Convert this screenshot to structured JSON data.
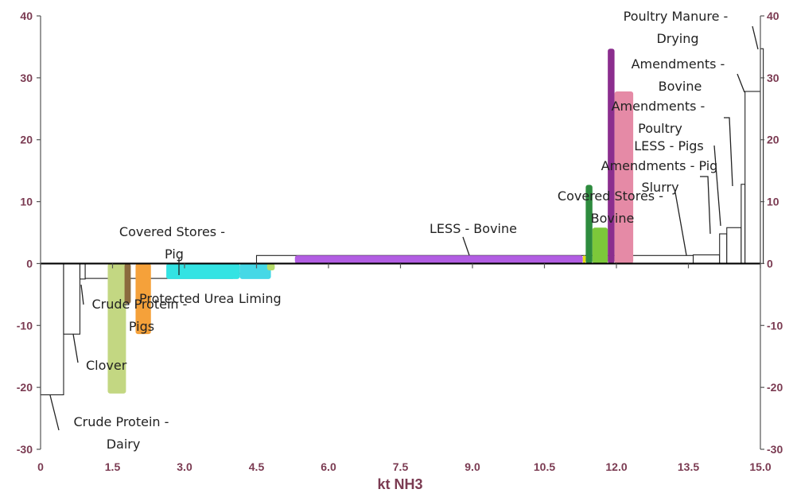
{
  "chart_data": {
    "type": "bar",
    "subtype": "marginal-abatement-cost-curve",
    "xlabel": "kt NH3",
    "ylabel": "",
    "xlim": [
      0,
      15.0
    ],
    "ylim": [
      -30,
      40
    ],
    "x_ticks": [
      "0",
      "1.5",
      "3.0",
      "4.5",
      "6.0",
      "7.5",
      "9.0",
      "10.5",
      "12.0",
      "13.5",
      "15.0"
    ],
    "y_ticks": [
      "-30",
      "-20",
      "-10",
      "0",
      "10",
      "20",
      "30",
      "40"
    ],
    "y_ticks_right": [
      "-30",
      "-20",
      "-10",
      "0",
      "10",
      "20",
      "30",
      "40"
    ],
    "grid": false,
    "legend": "none",
    "outline_bars": [
      {
        "x0": 0.0,
        "x1": 0.48,
        "y": -21.2
      },
      {
        "x0": 0.48,
        "x1": 0.82,
        "y": -11.4
      },
      {
        "x0": 0.82,
        "x1": 0.93,
        "y": -2.5
      },
      {
        "x0": 0.93,
        "x1": 4.0,
        "y": -2.4
      },
      {
        "x0": 4.0,
        "x1": 4.3,
        "y": -1.6
      },
      {
        "x0": 4.3,
        "x1": 4.5,
        "y": -0.8
      },
      {
        "x0": 4.5,
        "x1": 13.6,
        "y": 1.3
      },
      {
        "x0": 13.6,
        "x1": 14.15,
        "y": 1.4
      },
      {
        "x0": 14.15,
        "x1": 14.3,
        "y": 4.8
      },
      {
        "x0": 14.3,
        "x1": 14.6,
        "y": 5.8
      },
      {
        "x0": 14.6,
        "x1": 14.68,
        "y": 12.8
      },
      {
        "x0": 14.68,
        "x1": 15.0,
        "y": 27.8
      },
      {
        "x0": 15.0,
        "x1": 15.06,
        "y": 34.7
      }
    ],
    "colored_bars": [
      {
        "x0": 1.4,
        "x1": 1.78,
        "y": -21.0,
        "color": "#c3d782"
      },
      {
        "x0": 1.75,
        "x1": 1.88,
        "y": -6.5,
        "color": "#8b6a3e"
      },
      {
        "x0": 1.98,
        "x1": 2.3,
        "y": -11.4,
        "color": "#f5a13a"
      },
      {
        "x0": 2.62,
        "x1": 4.15,
        "y": -2.5,
        "color": "#33e3e3"
      },
      {
        "x0": 4.15,
        "x1": 4.8,
        "y": -2.5,
        "color": "#45d8e6"
      },
      {
        "x0": 4.72,
        "x1": 4.88,
        "y": -1.1,
        "color": "#b5dc6a"
      },
      {
        "x0": 5.3,
        "x1": 11.3,
        "y": 1.3,
        "color": "#b25ee3"
      },
      {
        "x0": 11.3,
        "x1": 11.36,
        "y": 1.3,
        "color": "#e8e010"
      },
      {
        "x0": 11.36,
        "x1": 11.5,
        "y": 12.7,
        "color": "#2e8b3e"
      },
      {
        "x0": 11.5,
        "x1": 11.82,
        "y": 5.8,
        "color": "#7cc83a"
      },
      {
        "x0": 11.82,
        "x1": 11.96,
        "y": 34.7,
        "color": "#8b2e8e"
      },
      {
        "x0": 11.96,
        "x1": 12.35,
        "y": 27.8,
        "color": "#e58aa6"
      }
    ],
    "annotations": {
      "poultry_manure_drying": "Poultry Manure - Drying",
      "amendments_bovine": "Amendments - Bovine",
      "amendments_poultry": "Amendments - Poultry",
      "less_pigs": "LESS - Pigs",
      "amendments_pig": "Amendments - Pig",
      "slurry": "Slurry",
      "covered_stores_bovine": "Covered Stores - Bovine",
      "less_bovine": "LESS - Bovine",
      "covered_stores_pig": "Covered Stores - Pig",
      "protected_urea": "Protected Urea",
      "liming": "Liming",
      "crude_protein_pigs": "Crude Protein - Pigs",
      "clover": "Clover",
      "crude_protein_dairy": "Crude Protein - Dairy"
    }
  }
}
